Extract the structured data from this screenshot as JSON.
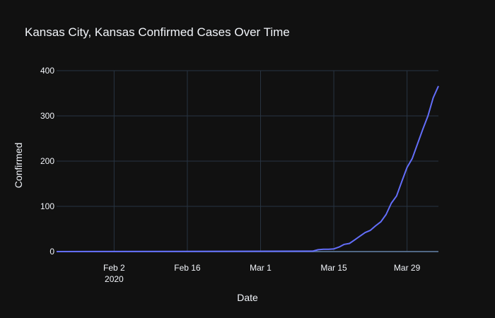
{
  "chart_data": {
    "type": "line",
    "title": "Kansas City, Kansas Confirmed Cases Over Time",
    "xlabel": "Date",
    "ylabel": "Confirmed",
    "x_ticks": [
      {
        "date": "2020-02-02",
        "label": "Feb 2",
        "sublabel": "2020"
      },
      {
        "date": "2020-02-16",
        "label": "Feb 16",
        "sublabel": ""
      },
      {
        "date": "2020-03-01",
        "label": "Mar 1",
        "sublabel": ""
      },
      {
        "date": "2020-03-15",
        "label": "Mar 15",
        "sublabel": ""
      },
      {
        "date": "2020-03-29",
        "label": "Mar 29",
        "sublabel": ""
      }
    ],
    "y_ticks": [
      0,
      100,
      200,
      300,
      400
    ],
    "xlim": [
      "2020-01-22",
      "2020-04-04"
    ],
    "ylim": [
      0,
      400
    ],
    "grid": true,
    "series": [
      {
        "color": "#636efa",
        "x": [
          "2020-01-22",
          "2020-03-10",
          "2020-03-11",
          "2020-03-12",
          "2020-03-13",
          "2020-03-14",
          "2020-03-15",
          "2020-03-16",
          "2020-03-17",
          "2020-03-18",
          "2020-03-19",
          "2020-03-20",
          "2020-03-21",
          "2020-03-22",
          "2020-03-23",
          "2020-03-24",
          "2020-03-25",
          "2020-03-26",
          "2020-03-27",
          "2020-03-28",
          "2020-03-29",
          "2020-03-30",
          "2020-03-31",
          "2020-04-01",
          "2020-04-02",
          "2020-04-03",
          "2020-04-04"
        ],
        "y": [
          0,
          1,
          1,
          4,
          5,
          5,
          6,
          10,
          16,
          18,
          26,
          34,
          42,
          47,
          57,
          66,
          82,
          107,
          123,
          155,
          186,
          206,
          238,
          270,
          300,
          340,
          366
        ]
      }
    ]
  }
}
